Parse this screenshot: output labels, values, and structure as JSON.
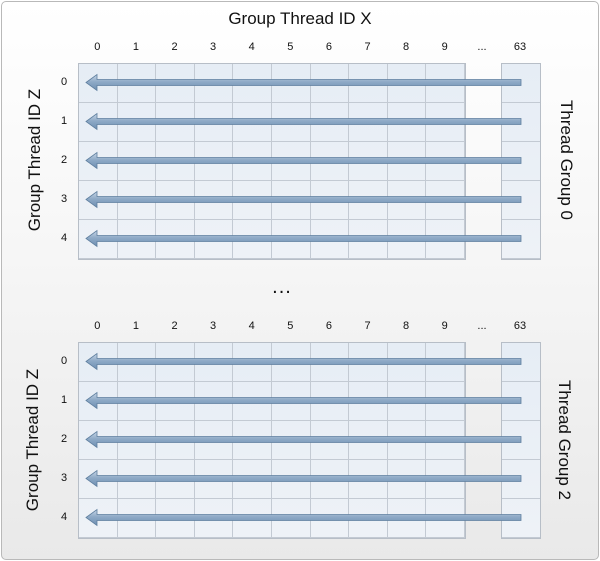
{
  "title": "Group Thread ID X",
  "middle_ellipsis": "...",
  "columns": [
    "0",
    "1",
    "2",
    "3",
    "4",
    "5",
    "6",
    "7",
    "8",
    "9",
    "...",
    "63"
  ],
  "rows": [
    "0",
    "1",
    "2",
    "3",
    "4"
  ],
  "groups": [
    {
      "z_label": "Group Thread ID Z",
      "group_label": "Thread Group 0"
    },
    {
      "z_label": "Group Thread ID Z",
      "group_label": "Thread Group 2"
    }
  ],
  "colors": {
    "grid_fill": "#e6edf5",
    "grid_line": "#c3cad3",
    "arrow_fill": "#8faac7",
    "arrow_stroke": "#5f7f9f"
  }
}
